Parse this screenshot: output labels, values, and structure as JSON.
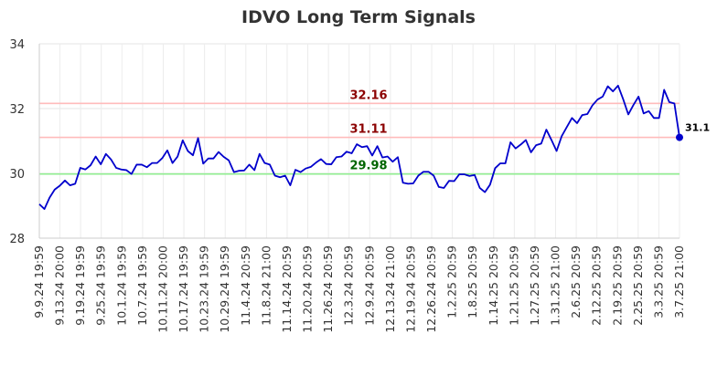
{
  "chart_data": {
    "type": "line",
    "title": "IDVO Long Term Signals",
    "xlabel": "",
    "ylabel": "",
    "ylim": [
      28,
      34
    ],
    "y_ticks": [
      28,
      30,
      32,
      34
    ],
    "grid": true,
    "x_tick_labels": [
      "9.9.24 19:59",
      "9.13.24 20:00",
      "9.19.24 19:59",
      "9.25.24 19:59",
      "10.1.24 19:59",
      "10.7.24 19:59",
      "10.11.24 20:00",
      "10.17.24 19:59",
      "10.23.24 19:59",
      "10.29.24 19:59",
      "11.4.24 20:59",
      "11.8.24 21:00",
      "11.14.24 20:59",
      "11.20.24 20:59",
      "11.26.24 20:59",
      "12.3.24 20:59",
      "12.9.24 20:59",
      "12.13.24 21:00",
      "12.19.24 20:59",
      "12.26.24 20:59",
      "1.2.25 20:59",
      "1.8.25 20:59",
      "1.14.25 20:59",
      "1.21.25 20:59",
      "1.27.25 20:59",
      "1.31.25 21:00",
      "2.6.25 20:59",
      "2.12.25 20:59",
      "2.19.25 20:59",
      "2.25.25 20:59",
      "3.3.25 20:59",
      "3.7.25 21:00"
    ],
    "reference_lines": [
      {
        "label": "32.16",
        "value": 32.16,
        "color": "#ffbbbb",
        "label_color": "#8b0000"
      },
      {
        "label": "31.11",
        "value": 31.11,
        "color": "#ffbbbb",
        "label_color": "#8b0000"
      },
      {
        "label": "29.98",
        "value": 29.98,
        "color": "#90ee90",
        "label_color": "#006400"
      }
    ],
    "series": [
      {
        "color": "#0000cc",
        "last_label": "31.1",
        "values": [
          29.05,
          28.9,
          29.25,
          29.5,
          29.62,
          29.78,
          29.63,
          29.68,
          30.17,
          30.12,
          30.25,
          30.52,
          30.28,
          30.6,
          30.43,
          30.17,
          30.12,
          30.1,
          29.98,
          30.27,
          30.27,
          30.19,
          30.32,
          30.32,
          30.47,
          30.71,
          30.32,
          30.52,
          31.02,
          30.69,
          30.56,
          31.09,
          30.3,
          30.46,
          30.46,
          30.66,
          30.51,
          30.4,
          30.04,
          30.08,
          30.09,
          30.27,
          30.1,
          30.6,
          30.32,
          30.27,
          29.93,
          29.88,
          29.93,
          29.63,
          30.11,
          30.04,
          30.15,
          30.2,
          30.33,
          30.44,
          30.29,
          30.28,
          30.5,
          30.52,
          30.67,
          30.62,
          30.9,
          30.81,
          30.84,
          30.55,
          30.84,
          30.49,
          30.52,
          30.36,
          30.5,
          29.71,
          29.68,
          29.69,
          29.93,
          30.05,
          30.05,
          29.93,
          29.58,
          29.55,
          29.77,
          29.76,
          29.97,
          29.97,
          29.92,
          29.95,
          29.55,
          29.42,
          29.65,
          30.16,
          30.31,
          30.31,
          30.96,
          30.77,
          30.89,
          31.03,
          30.65,
          30.87,
          30.92,
          31.35,
          31.03,
          30.69,
          31.15,
          31.43,
          31.71,
          31.55,
          31.8,
          31.83,
          32.1,
          32.28,
          32.37,
          32.69,
          32.53,
          32.71,
          32.29,
          31.82,
          32.11,
          32.37,
          31.85,
          31.92,
          31.71,
          31.71,
          32.58,
          32.2,
          32.16,
          31.11
        ]
      }
    ]
  }
}
